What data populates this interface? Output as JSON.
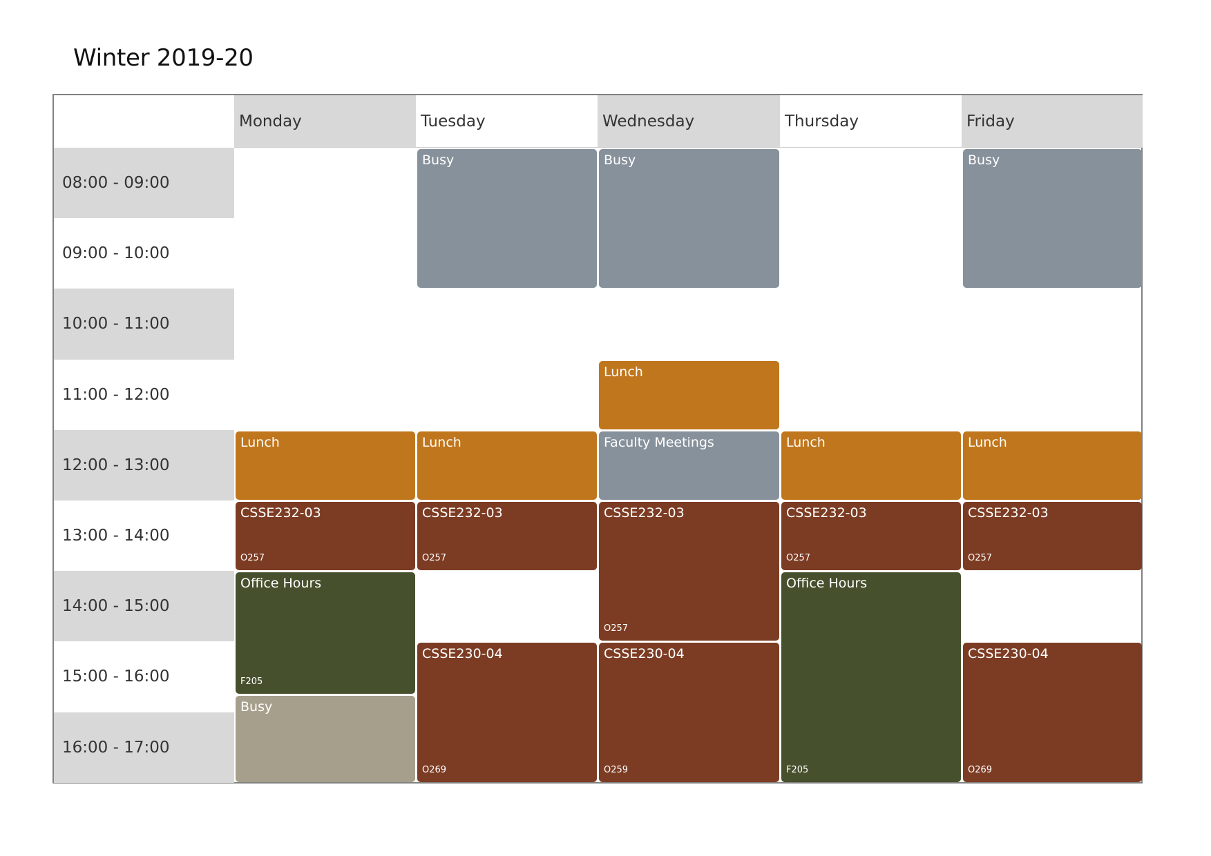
{
  "title": "Winter 2019-20",
  "days": [
    "Monday",
    "Tuesday",
    "Wednesday",
    "Thursday",
    "Friday"
  ],
  "time_slots": [
    "08:00 - 09:00",
    "09:00 - 10:00",
    "10:00 - 11:00",
    "11:00 - 12:00",
    "12:00 - 13:00",
    "13:00 - 14:00",
    "14:00 - 15:00",
    "15:00 - 16:00",
    "16:00 - 17:00"
  ],
  "colors": {
    "header_shaded": "#d8d8d8",
    "busy": "#87919b",
    "busy_light": "#a69f8c",
    "lunch": "#c0761c",
    "course": "#7c3c23",
    "office_hours": "#46502c",
    "border": "#808080"
  },
  "events": [
    {
      "day": 0,
      "start": "12:00",
      "end": "13:00",
      "title": "Lunch",
      "room": "",
      "color": "#c0761c"
    },
    {
      "day": 0,
      "start": "13:00",
      "end": "14:00",
      "title": "CSSE232-03",
      "room": "O257",
      "color": "#7c3c23"
    },
    {
      "day": 0,
      "start": "14:00",
      "end": "15:45",
      "title": "Office Hours",
      "room": "F205",
      "color": "#46502c"
    },
    {
      "day": 0,
      "start": "15:45",
      "end": "17:00",
      "title": "Busy",
      "room": "",
      "color": "#a69f8c"
    },
    {
      "day": 1,
      "start": "08:00",
      "end": "10:00",
      "title": "Busy",
      "room": "",
      "color": "#87919b"
    },
    {
      "day": 1,
      "start": "12:00",
      "end": "13:00",
      "title": "Lunch",
      "room": "",
      "color": "#c0761c"
    },
    {
      "day": 1,
      "start": "13:00",
      "end": "14:00",
      "title": "CSSE232-03",
      "room": "O257",
      "color": "#7c3c23"
    },
    {
      "day": 1,
      "start": "15:00",
      "end": "17:00",
      "title": "CSSE230-04",
      "room": "O269",
      "color": "#7c3c23"
    },
    {
      "day": 2,
      "start": "08:00",
      "end": "10:00",
      "title": "Busy",
      "room": "",
      "color": "#87919b"
    },
    {
      "day": 2,
      "start": "11:00",
      "end": "12:00",
      "title": "Lunch",
      "room": "",
      "color": "#c0761c"
    },
    {
      "day": 2,
      "start": "12:00",
      "end": "13:00",
      "title": "Faculty Meetings",
      "room": "",
      "color": "#87919b"
    },
    {
      "day": 2,
      "start": "13:00",
      "end": "15:00",
      "title": "CSSE232-03",
      "room": "O257",
      "color": "#7c3c23"
    },
    {
      "day": 2,
      "start": "15:00",
      "end": "17:00",
      "title": "CSSE230-04",
      "room": "O259",
      "color": "#7c3c23"
    },
    {
      "day": 3,
      "start": "12:00",
      "end": "13:00",
      "title": "Lunch",
      "room": "",
      "color": "#c0761c"
    },
    {
      "day": 3,
      "start": "13:00",
      "end": "14:00",
      "title": "CSSE232-03",
      "room": "O257",
      "color": "#7c3c23"
    },
    {
      "day": 3,
      "start": "14:00",
      "end": "17:00",
      "title": "Office Hours",
      "room": "F205",
      "color": "#46502c"
    },
    {
      "day": 4,
      "start": "08:00",
      "end": "10:00",
      "title": "Busy",
      "room": "",
      "color": "#87919b"
    },
    {
      "day": 4,
      "start": "12:00",
      "end": "13:00",
      "title": "Lunch",
      "room": "",
      "color": "#c0761c"
    },
    {
      "day": 4,
      "start": "13:00",
      "end": "14:00",
      "title": "CSSE232-03",
      "room": "O257",
      "color": "#7c3c23"
    },
    {
      "day": 4,
      "start": "15:00",
      "end": "17:00",
      "title": "CSSE230-04",
      "room": "O269",
      "color": "#7c3c23"
    }
  ]
}
